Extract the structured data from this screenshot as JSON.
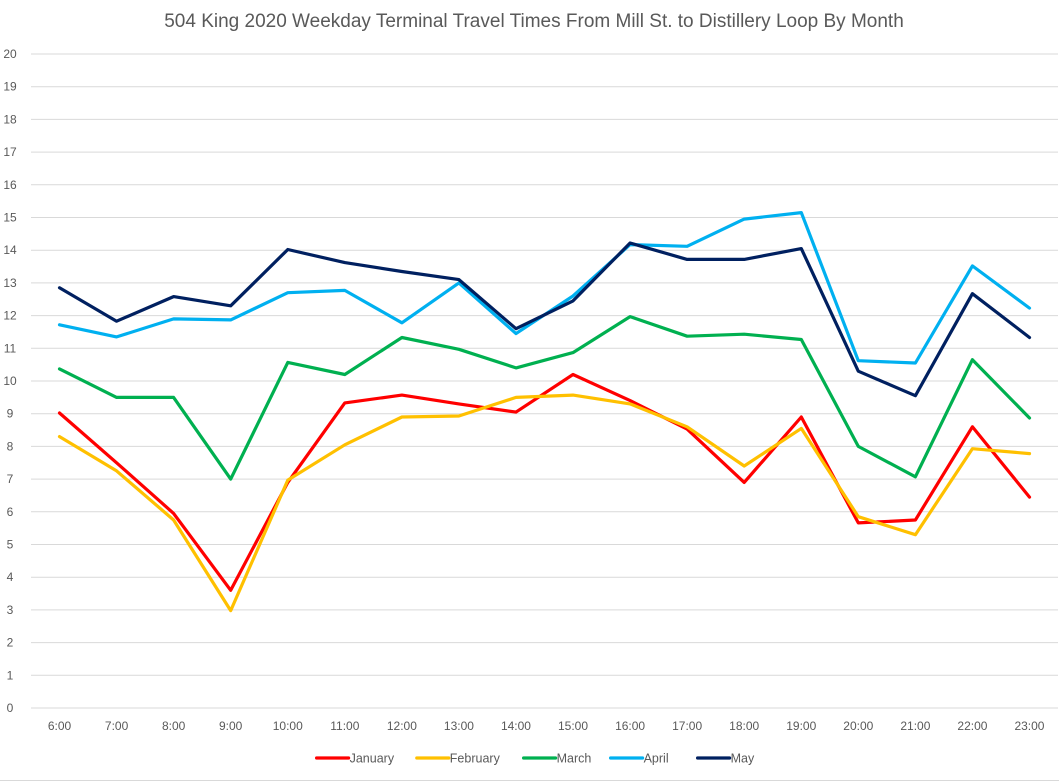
{
  "chart_data": {
    "type": "line",
    "title": "504 King 2020 Weekday Terminal Travel Times From Mill St. to Distillery Loop By Month",
    "xlabel": "",
    "ylabel": "",
    "ylim": [
      0,
      20
    ],
    "yticks": [
      "0",
      "1",
      "2",
      "3",
      "4",
      "5",
      "6",
      "7",
      "8",
      "9",
      "10",
      "11",
      "12",
      "13",
      "14",
      "15",
      "16",
      "17",
      "18",
      "19",
      "20"
    ],
    "grid": true,
    "legend_position": "bottom",
    "categories": [
      "6:00",
      "7:00",
      "8:00",
      "9:00",
      "10:00",
      "11:00",
      "12:00",
      "13:00",
      "14:00",
      "15:00",
      "16:00",
      "17:00",
      "18:00",
      "19:00",
      "20:00",
      "21:00",
      "22:00",
      "23:00"
    ],
    "series": [
      {
        "name": "January",
        "color": "#ff0000",
        "values": [
          9.02,
          7.5,
          5.95,
          3.6,
          6.9,
          9.33,
          9.57,
          9.3,
          9.05,
          10.2,
          9.4,
          8.53,
          6.9,
          8.9,
          5.66,
          5.75,
          8.6,
          6.45
        ]
      },
      {
        "name": "February",
        "color": "#ffc000",
        "values": [
          8.3,
          7.25,
          5.75,
          2.98,
          6.97,
          8.05,
          8.9,
          8.93,
          9.5,
          9.57,
          9.3,
          8.6,
          7.4,
          8.55,
          5.85,
          5.3,
          7.93,
          7.78
        ]
      },
      {
        "name": "March",
        "color": "#00b050",
        "values": [
          10.37,
          9.5,
          9.5,
          7.0,
          10.57,
          10.2,
          11.33,
          10.97,
          10.4,
          10.87,
          11.97,
          11.37,
          11.43,
          11.27,
          8.0,
          7.07,
          10.65,
          8.87
        ]
      },
      {
        "name": "April",
        "color": "#00b0f0",
        "values": [
          11.72,
          11.35,
          11.9,
          11.87,
          12.7,
          12.77,
          11.78,
          13.0,
          11.45,
          12.6,
          14.17,
          14.12,
          14.95,
          15.15,
          10.62,
          10.55,
          13.52,
          12.23
        ]
      },
      {
        "name": "May",
        "color": "#002060",
        "values": [
          12.85,
          11.83,
          12.58,
          12.3,
          14.02,
          13.62,
          13.35,
          13.1,
          11.6,
          12.45,
          14.22,
          13.72,
          13.72,
          14.05,
          10.3,
          9.55,
          12.67,
          11.33
        ]
      }
    ]
  }
}
